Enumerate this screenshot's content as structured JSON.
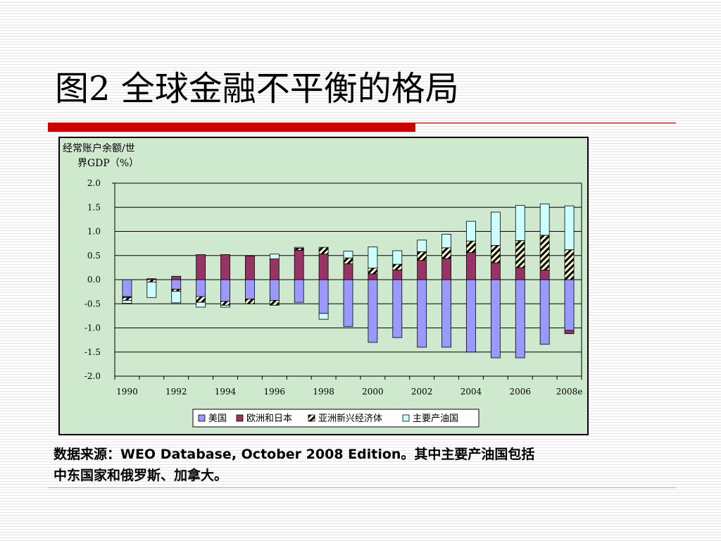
{
  "slide": {
    "title": "图2 全球金融不平衡的格局",
    "source_line1": "数据来源：WEO Database, October 2008 Edition。其中主要产油国包括",
    "source_line2": "中东国家和俄罗斯、加拿大。"
  },
  "chart_data": {
    "type": "stacked-bar",
    "ylabel_line1": "经常账户余额/世",
    "ylabel_line2": "界GDP（%）",
    "ylim": [
      -2.0,
      2.0
    ],
    "yticks": [
      "2.0",
      "1.5",
      "1.0",
      "0.5",
      "0.0",
      "-0.5",
      "-1.0",
      "-1.5",
      "-2.0"
    ],
    "ytick_values": [
      2.0,
      1.5,
      1.0,
      0.5,
      0.0,
      -0.5,
      -1.0,
      -1.5,
      -2.0
    ],
    "grid": true,
    "legend_position": "bottom",
    "x_categories": [
      "1990",
      "1991",
      "1992",
      "1993",
      "1994",
      "1995",
      "1996",
      "1997",
      "1998",
      "1999",
      "2000",
      "2001",
      "2002",
      "2003",
      "2004",
      "2005",
      "2006",
      "2007",
      "2008e"
    ],
    "x_tick_labels": [
      "1990",
      "1992",
      "1994",
      "1996",
      "1998",
      "2000",
      "2002",
      "2004",
      "2006",
      "2008e"
    ],
    "x_tick_label_indices": [
      0,
      2,
      4,
      6,
      8,
      10,
      12,
      14,
      16,
      18
    ],
    "series": [
      {
        "name": "美国",
        "color": "#9999ff",
        "pattern": "solid",
        "values": [
          -0.35,
          0.0,
          -0.2,
          -0.35,
          -0.45,
          -0.4,
          -0.43,
          -0.47,
          -0.7,
          -0.97,
          -1.3,
          -1.2,
          -1.4,
          -1.4,
          -1.5,
          -1.62,
          -1.62,
          -1.34,
          -1.05
        ]
      },
      {
        "name": "欧洲和日本",
        "color": "#993366",
        "pattern": "solid",
        "values": [
          -0.02,
          0.02,
          0.07,
          0.52,
          0.52,
          0.49,
          0.43,
          0.61,
          0.53,
          0.33,
          0.12,
          0.2,
          0.4,
          0.44,
          0.56,
          0.35,
          0.25,
          0.2,
          -0.07
        ]
      },
      {
        "name": "亚洲新兴经济体",
        "color": "#ffffcc",
        "pattern": "hatch",
        "values": [
          -0.06,
          -0.05,
          -0.04,
          -0.12,
          -0.08,
          -0.1,
          -0.1,
          0.04,
          0.14,
          0.12,
          0.12,
          0.12,
          0.18,
          0.22,
          0.24,
          0.36,
          0.56,
          0.72,
          0.62
        ]
      },
      {
        "name": "主要产油国",
        "color": "#ccffff",
        "pattern": "solid",
        "values": [
          -0.06,
          -0.32,
          -0.24,
          -0.1,
          -0.04,
          0.0,
          0.1,
          0.02,
          -0.12,
          0.14,
          0.44,
          0.28,
          0.24,
          0.28,
          0.41,
          0.69,
          0.73,
          0.65,
          0.91
        ]
      }
    ]
  }
}
